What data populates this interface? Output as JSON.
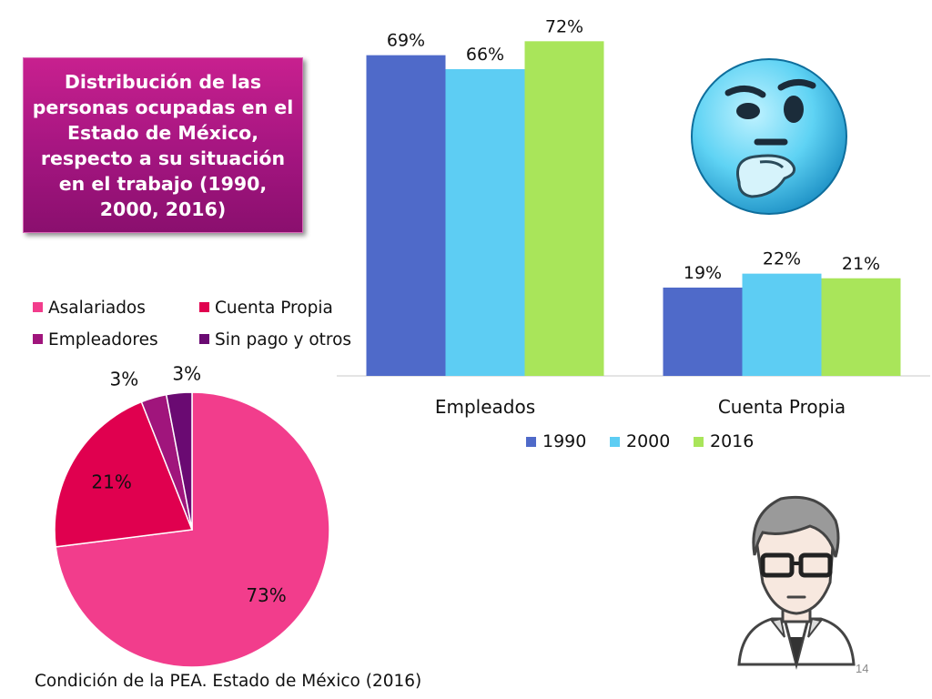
{
  "slide": {
    "title": "Distribución de las personas ocupadas en el Estado de México, respecto a su situación en el trabajo (1990, 2000, 2016)",
    "page_number": "14",
    "pie_caption": "Condición de la PEA. Estado de México (2016)"
  },
  "illustrations": {
    "thinking_emoji": "thinking-face-icon",
    "man_avatar": "man-with-glasses-icon"
  },
  "chart_data": [
    {
      "type": "bar",
      "categories": [
        "Empleados",
        "Cuenta Propia"
      ],
      "series": [
        {
          "name": "1990",
          "values": [
            69,
            19
          ],
          "labels": [
            "69%",
            "19%"
          ],
          "color": "#4f6ac9"
        },
        {
          "name": "2000",
          "values": [
            66,
            22
          ],
          "labels": [
            "66%",
            "22%"
          ],
          "color": "#5dcdf3"
        },
        {
          "name": "2016",
          "values": [
            72,
            21
          ],
          "labels": [
            "72%",
            "21%"
          ],
          "color": "#a9e55a"
        }
      ],
      "ylim": [
        0,
        75
      ],
      "grid": false,
      "legend_position": "bottom"
    },
    {
      "type": "pie",
      "title": "Condición de la PEA. Estado de México (2016)",
      "slices": [
        {
          "name": "Asalariados",
          "value": 73,
          "label": "73%",
          "color": "#f23d8c"
        },
        {
          "name": "Cuenta Propia",
          "value": 21,
          "label": "21%",
          "color": "#e0004f"
        },
        {
          "name": "Empleadores",
          "value": 3,
          "label": "3%",
          "color": "#a0157c"
        },
        {
          "name": "Sin pago y otros",
          "value": 3,
          "label": "3%",
          "color": "#6a0a72"
        }
      ],
      "legend_position": "top"
    }
  ]
}
